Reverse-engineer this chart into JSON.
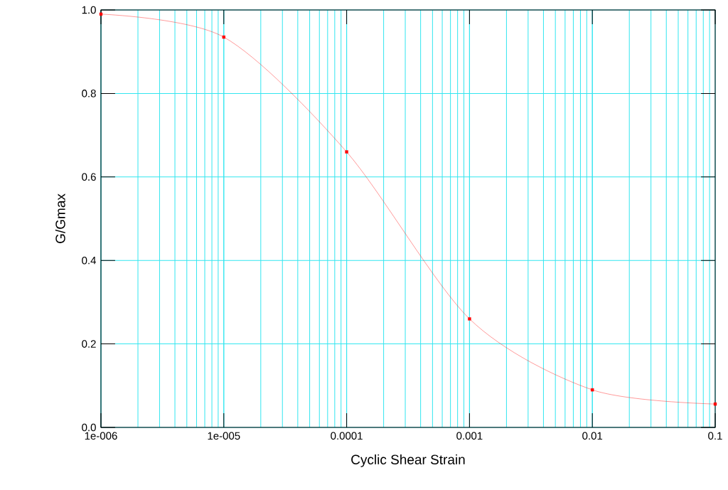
{
  "chart_data": {
    "type": "line",
    "xlabel": "Cyclic Shear Strain",
    "ylabel": "G/Gmax",
    "log": "x",
    "x": [
      1e-06,
      1e-05,
      0.0001,
      0.001,
      0.01,
      0.1
    ],
    "series": [
      {
        "color": "#ff0000",
        "values": [
          0.99,
          0.935,
          0.66,
          0.26,
          0.09,
          0.056
        ]
      }
    ],
    "marker": "square",
    "grid": true,
    "xlim": [
      1e-06,
      0.1
    ],
    "xticks": [
      {
        "value": 1e-06,
        "label": "1e-006"
      },
      {
        "value": 1e-05,
        "label": "1e-005"
      },
      {
        "value": 0.0001,
        "label": "0.0001"
      },
      {
        "value": 0.001,
        "label": "0.001"
      },
      {
        "value": 0.01,
        "label": "0.01"
      },
      {
        "value": 0.1,
        "label": "0.1"
      }
    ],
    "ylim": [
      0,
      1
    ],
    "yticks": [
      {
        "value": 0,
        "label": "0.0"
      },
      {
        "value": 0.2,
        "label": "0.2"
      },
      {
        "value": 0.4,
        "label": "0.4"
      },
      {
        "value": 0.6,
        "label": "0.6"
      },
      {
        "value": 0.8,
        "label": "0.8"
      },
      {
        "value": 1,
        "label": "1.0"
      }
    ]
  }
}
